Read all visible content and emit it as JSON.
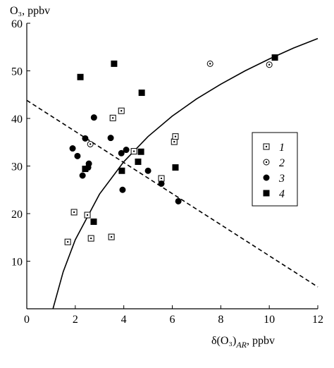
{
  "chart_data": {
    "type": "scatter",
    "y_label": "O₃, ppbv",
    "x_label": [
      "δ(O₃)",
      "AR",
      ", ppbv"
    ],
    "xlim": [
      0,
      12
    ],
    "xticks": [
      0,
      2,
      4,
      6,
      8,
      10,
      12
    ],
    "ylim": [
      0,
      60
    ],
    "yticks": [
      10,
      20,
      30,
      40,
      50,
      60
    ],
    "legend": "right",
    "series": [
      {
        "name": "1",
        "marker": "square-dot",
        "color": "#000000",
        "x": [
          1.69,
          1.95,
          2.5,
          2.65,
          3.49,
          3.55,
          3.9,
          4.42,
          5.55,
          6.08,
          6.13
        ],
        "values": [
          14.05,
          20.3,
          19.7,
          14.8,
          15.1,
          40.1,
          41.6,
          33.1,
          27.4,
          35.1,
          36.2
        ]
      },
      {
        "name": "2",
        "marker": "circle-dot",
        "color": "#000000",
        "x": [
          2.62,
          7.56,
          10.0
        ],
        "values": [
          34.6,
          51.5,
          51.3
        ]
      },
      {
        "name": "3",
        "marker": "circle",
        "color": "#000000",
        "x": [
          1.89,
          2.09,
          2.3,
          2.41,
          2.56,
          2.53,
          2.77,
          3.46,
          3.9,
          4.1,
          3.95,
          5.0,
          5.55,
          6.25
        ],
        "values": [
          33.7,
          32.1,
          28.0,
          35.8,
          30.5,
          29.7,
          40.2,
          35.9,
          32.7,
          33.4,
          25.0,
          29.0,
          26.3,
          22.6
        ]
      },
      {
        "name": "4",
        "marker": "square",
        "color": "#000000",
        "x": [
          2.21,
          3.6,
          4.74,
          2.41,
          2.76,
          3.92,
          4.71,
          4.59,
          6.13,
          10.23
        ],
        "values": [
          48.7,
          51.5,
          45.4,
          29.4,
          18.3,
          29.0,
          33.0,
          30.9,
          29.7,
          52.8
        ]
      }
    ],
    "curves": [
      {
        "style": "dashed",
        "x": [
          0,
          12
        ],
        "values": [
          43.8,
          4.6
        ]
      },
      {
        "style": "solid",
        "x": [
          1.08,
          1.5,
          2,
          3,
          4,
          5,
          6,
          7,
          8,
          9,
          10,
          11,
          12
        ],
        "values": [
          0,
          7.75,
          14.5,
          24.1,
          30.9,
          36.2,
          40.5,
          44.1,
          47.2,
          50.0,
          52.5,
          54.8,
          56.8
        ]
      }
    ]
  }
}
